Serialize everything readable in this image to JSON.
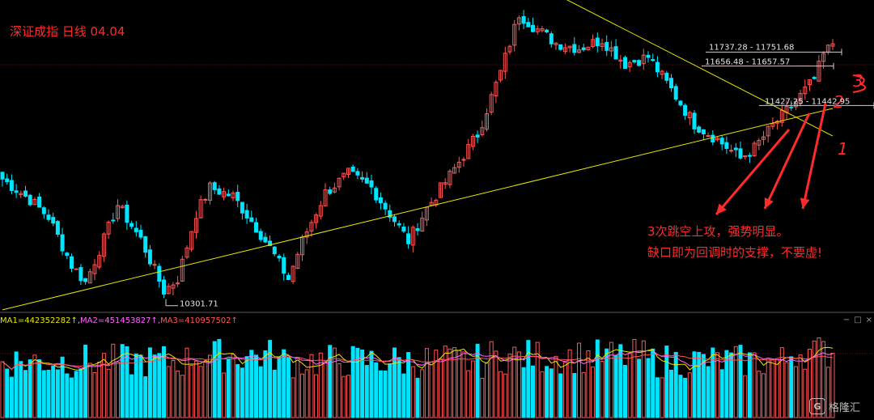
{
  "chart_title": "深证成指 日线 04.04",
  "ma_legend": {
    "ma1": "MA1=442352282↑,",
    "ma2": "MA2=451453827↑,",
    "ma3": "MA3=410957502↑"
  },
  "window_controls": {
    "minimize": "−",
    "maximize": "□",
    "close": "×"
  },
  "annotation_lines": [
    "3次跳空上攻，强势明显。",
    "缺口即为回调时的支撑，不要虚!"
  ],
  "gap_marks": [
    "1",
    "2",
    "3"
  ],
  "watermark": "格隆汇",
  "colors": {
    "up": "#ff5555",
    "down": "#00e5ff",
    "trendline": "#e8e800",
    "annotation": "#ff2a2a",
    "grid": "#7a1010"
  },
  "chart_data": [
    {
      "type": "candlestick",
      "title": "深证成指 日线 04.04",
      "ylim": [
        10230,
        12040
      ],
      "price_labels": [
        {
          "text": "10301.71",
          "value": 10301.71
        },
        {
          "text": "11737.28 - 11751.68",
          "value": 11737.28
        },
        {
          "text": "11656.48 - 11657.57",
          "value": 11656.48
        },
        {
          "text": "11427.25 - 11442.95",
          "value": 11427.25
        }
      ],
      "trendlines": [
        {
          "name": "support",
          "from": [
            0,
            10240
          ],
          "to": [
            180,
            11410
          ]
        },
        {
          "name": "resistance",
          "from": [
            121,
            12060
          ],
          "to": [
            180,
            11250
          ]
        }
      ],
      "annotations": [
        "3次跳空上攻，强势明显。",
        "缺口即为回调时的支撑，不要虚!"
      ]
    },
    {
      "type": "bar",
      "title": "",
      "series": [
        {
          "name": "MA1",
          "value": 442352282
        },
        {
          "name": "MA2",
          "value": 451453827
        },
        {
          "name": "MA3",
          "value": 410957502
        }
      ]
    }
  ]
}
